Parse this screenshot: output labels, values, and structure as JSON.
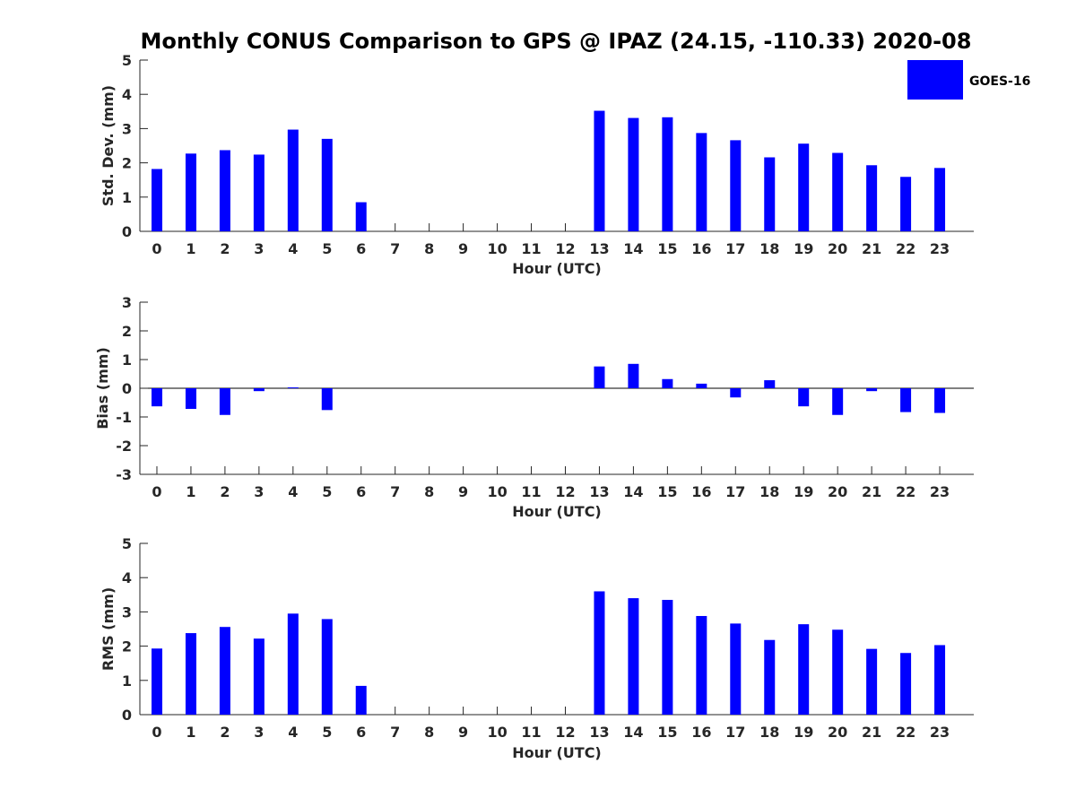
{
  "title": "Monthly CONUS Comparison to GPS @ IPAZ (24.15, -110.33) 2020-08",
  "legend": {
    "label": "GOES-16",
    "color": "#0000ff",
    "placement": "top-right"
  },
  "colors": {
    "bar": "#0000ff",
    "axis": "#262626",
    "text": "#262626"
  },
  "chart_data": [
    {
      "type": "bar",
      "name": "std-dev",
      "title": "Monthly CONUS Comparison to GPS @ IPAZ (24.15, -110.33) 2020-08",
      "xlabel": "Hour (UTC)",
      "ylabel": "Std. Dev. (mm)",
      "ylim": [
        0,
        5
      ],
      "yticks": [
        0,
        1,
        2,
        3,
        4,
        5
      ],
      "categories": [
        "0",
        "1",
        "2",
        "3",
        "4",
        "5",
        "6",
        "7",
        "8",
        "9",
        "10",
        "11",
        "12",
        "13",
        "14",
        "15",
        "16",
        "17",
        "18",
        "19",
        "20",
        "21",
        "22",
        "23"
      ],
      "series": [
        {
          "name": "GOES-16",
          "values": [
            1.82,
            2.27,
            2.37,
            2.24,
            2.97,
            2.7,
            0.85,
            null,
            null,
            null,
            null,
            null,
            null,
            3.52,
            3.31,
            3.33,
            2.87,
            2.66,
            2.16,
            2.56,
            2.29,
            1.93,
            1.59,
            1.85
          ]
        }
      ],
      "grid": false
    },
    {
      "type": "bar",
      "name": "bias",
      "title": "",
      "xlabel": "Hour (UTC)",
      "ylabel": "Bias (mm)",
      "ylim": [
        -3,
        3
      ],
      "yticks": [
        -3,
        -2,
        -1,
        0,
        1,
        2,
        3
      ],
      "categories": [
        "0",
        "1",
        "2",
        "3",
        "4",
        "5",
        "6",
        "7",
        "8",
        "9",
        "10",
        "11",
        "12",
        "13",
        "14",
        "15",
        "16",
        "17",
        "18",
        "19",
        "20",
        "21",
        "22",
        "23"
      ],
      "series": [
        {
          "name": "GOES-16",
          "values": [
            -0.63,
            -0.72,
            -0.93,
            -0.1,
            0.03,
            -0.76,
            null,
            null,
            null,
            null,
            null,
            null,
            null,
            0.76,
            0.85,
            0.32,
            0.16,
            -0.32,
            0.28,
            -0.63,
            -0.93,
            -0.1,
            -0.83,
            -0.86
          ]
        }
      ],
      "grid": false
    },
    {
      "type": "bar",
      "name": "rms",
      "title": "",
      "xlabel": "Hour (UTC)",
      "ylabel": "RMS (mm)",
      "ylim": [
        0,
        5
      ],
      "yticks": [
        0,
        1,
        2,
        3,
        4,
        5
      ],
      "categories": [
        "0",
        "1",
        "2",
        "3",
        "4",
        "5",
        "6",
        "7",
        "8",
        "9",
        "10",
        "11",
        "12",
        "13",
        "14",
        "15",
        "16",
        "17",
        "18",
        "19",
        "20",
        "21",
        "22",
        "23"
      ],
      "series": [
        {
          "name": "GOES-16",
          "values": [
            1.93,
            2.38,
            2.56,
            2.22,
            2.95,
            2.79,
            0.84,
            null,
            null,
            null,
            null,
            null,
            null,
            3.6,
            3.4,
            3.35,
            2.88,
            2.66,
            2.18,
            2.64,
            2.48,
            1.92,
            1.8,
            2.03
          ]
        }
      ],
      "grid": false
    }
  ]
}
